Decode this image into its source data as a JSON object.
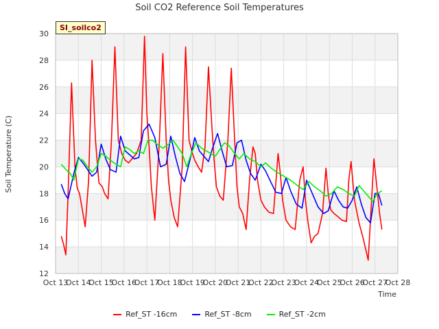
{
  "chart_data": {
    "type": "line",
    "title": "Soil CO2 Reference Soil Temperatures",
    "xlabel": "Time",
    "ylabel": "Soil Temperature (C)",
    "badge": "SI_soilco2",
    "ylim": [
      12,
      30
    ],
    "yticks": [
      12,
      14,
      16,
      18,
      20,
      22,
      24,
      26,
      28,
      30
    ],
    "xlim": [
      13,
      28
    ],
    "xticks": [
      13,
      14,
      15,
      16,
      17,
      18,
      19,
      20,
      21,
      22,
      23,
      24,
      25,
      26,
      27,
      28
    ],
    "xticklabels": [
      "Oct 13",
      "Oct 14",
      "Oct 15",
      "Oct 16",
      "Oct 17",
      "Oct 18",
      "Oct 19",
      "Oct 20",
      "Oct 21",
      "Oct 22",
      "Oct 23",
      "Oct 24",
      "Oct 25",
      "Oct 26",
      "Oct 27",
      "Oct 28"
    ],
    "series": [
      {
        "name": "Ref_ST -16cm",
        "color": "#ff0000",
        "x": [
          13.25,
          13.35,
          13.45,
          13.55,
          13.7,
          13.85,
          13.95,
          14.05,
          14.15,
          14.3,
          14.45,
          14.6,
          14.75,
          14.9,
          15.05,
          15.15,
          15.3,
          15.45,
          15.6,
          15.75,
          15.9,
          16.05,
          16.2,
          16.35,
          16.55,
          16.75,
          16.9,
          17.0,
          17.1,
          17.2,
          17.35,
          17.55,
          17.7,
          17.85,
          17.95,
          18.05,
          18.2,
          18.35,
          18.55,
          18.7,
          18.85,
          19.0,
          19.1,
          19.25,
          19.4,
          19.55,
          19.7,
          19.85,
          19.95,
          20.05,
          20.2,
          20.35,
          20.55,
          20.7,
          20.85,
          20.95,
          21.05,
          21.2,
          21.35,
          21.5,
          21.65,
          21.75,
          21.85,
          22.0,
          22.15,
          22.35,
          22.55,
          22.75,
          22.85,
          22.95,
          23.1,
          23.3,
          23.5,
          23.7,
          23.85,
          23.95,
          24.05,
          24.2,
          24.35,
          24.5,
          24.7,
          24.85,
          24.95,
          25.05,
          25.2,
          25.35,
          25.55,
          25.75,
          25.85,
          25.95,
          26.1,
          26.3,
          26.5,
          26.7,
          26.85,
          26.95,
          27.05,
          27.2,
          27.3
        ],
        "values": [
          14.8,
          14.2,
          13.4,
          18.0,
          26.3,
          20.0,
          18.4,
          18.0,
          17.0,
          15.5,
          19.0,
          28.0,
          22.0,
          18.8,
          18.5,
          18.0,
          17.6,
          22.0,
          29.0,
          22.0,
          21.0,
          20.5,
          20.3,
          20.6,
          21.0,
          22.0,
          29.8,
          24.0,
          21.5,
          18.5,
          16.0,
          22.0,
          28.5,
          22.0,
          19.0,
          17.5,
          16.2,
          15.5,
          20.0,
          29.0,
          22.0,
          21.0,
          20.5,
          20.0,
          19.6,
          21.5,
          27.5,
          23.0,
          20.5,
          18.5,
          17.8,
          17.5,
          22.0,
          27.4,
          22.0,
          18.5,
          17.0,
          16.5,
          15.3,
          19.0,
          21.5,
          21.0,
          19.0,
          17.5,
          17.0,
          16.6,
          16.5,
          21.0,
          19.5,
          17.5,
          16.0,
          15.5,
          15.3,
          19.0,
          20.0,
          17.5,
          16.0,
          14.3,
          14.8,
          15.0,
          16.5,
          19.9,
          18.0,
          16.8,
          16.5,
          16.3,
          16.0,
          15.9,
          19.0,
          20.4,
          17.5,
          15.8,
          14.5,
          13.0,
          17.5,
          20.6,
          19.0,
          16.5,
          15.3
        ]
      },
      {
        "name": "Ref_ST -8cm",
        "color": "#0000ff",
        "x": [
          13.25,
          13.4,
          13.55,
          13.8,
          14.0,
          14.2,
          14.4,
          14.6,
          14.8,
          15.0,
          15.2,
          15.4,
          15.65,
          15.85,
          16.05,
          16.25,
          16.45,
          16.65,
          16.85,
          17.1,
          17.35,
          17.6,
          17.85,
          18.05,
          18.25,
          18.45,
          18.65,
          18.9,
          19.1,
          19.3,
          19.5,
          19.7,
          19.9,
          20.1,
          20.3,
          20.5,
          20.75,
          20.95,
          21.15,
          21.35,
          21.55,
          21.75,
          22.0,
          22.2,
          22.45,
          22.65,
          22.9,
          23.1,
          23.3,
          23.55,
          23.8,
          24.0,
          24.25,
          24.5,
          24.75,
          24.95,
          25.2,
          25.4,
          25.6,
          25.8,
          26.0,
          26.2,
          26.4,
          26.6,
          26.8,
          27.0,
          27.15,
          27.3
        ],
        "values": [
          18.7,
          18.0,
          17.6,
          19.5,
          20.7,
          20.3,
          19.8,
          19.3,
          19.6,
          21.7,
          20.6,
          19.8,
          19.6,
          22.3,
          21.2,
          20.9,
          20.6,
          20.7,
          22.7,
          23.2,
          22.2,
          20.0,
          20.2,
          22.3,
          20.8,
          19.5,
          18.9,
          20.6,
          22.2,
          21.2,
          20.8,
          20.4,
          21.5,
          22.5,
          21.2,
          20.0,
          20.1,
          21.8,
          22.0,
          20.5,
          19.5,
          19.0,
          20.2,
          19.7,
          18.8,
          18.1,
          18.0,
          19.2,
          18.2,
          17.2,
          16.9,
          19.0,
          18.0,
          17.0,
          16.5,
          16.7,
          18.2,
          17.5,
          17.0,
          16.9,
          17.5,
          18.5,
          17.2,
          16.2,
          15.8,
          18.0,
          18.0,
          17.1
        ]
      },
      {
        "name": "Ref_ST -2cm",
        "color": "#00ee00",
        "x": [
          13.25,
          13.45,
          13.65,
          13.8,
          14.0,
          14.2,
          14.4,
          14.6,
          14.8,
          15.0,
          15.2,
          15.4,
          15.65,
          15.85,
          16.05,
          16.25,
          16.45,
          16.65,
          16.85,
          17.05,
          17.25,
          17.45,
          17.7,
          17.95,
          18.15,
          18.35,
          18.55,
          18.75,
          18.95,
          19.15,
          19.4,
          19.6,
          19.8,
          20.0,
          20.2,
          20.4,
          20.6,
          20.85,
          21.05,
          21.25,
          21.5,
          21.75,
          22.0,
          22.2,
          22.45,
          22.7,
          23.0,
          23.3,
          23.6,
          23.85,
          24.1,
          24.35,
          24.6,
          24.85,
          25.1,
          25.35,
          25.6,
          25.85,
          26.1,
          26.3,
          26.5,
          26.7,
          26.9,
          27.1,
          27.3
        ],
        "values": [
          20.2,
          19.8,
          19.5,
          19.0,
          20.6,
          20.5,
          20.0,
          19.6,
          20.0,
          21.0,
          20.8,
          20.5,
          20.2,
          20.0,
          21.5,
          21.3,
          21.0,
          21.2,
          21.0,
          22.0,
          22.0,
          21.7,
          21.4,
          21.7,
          22.0,
          21.5,
          21.0,
          20.0,
          21.0,
          21.8,
          21.4,
          21.2,
          21.0,
          20.8,
          21.3,
          21.8,
          21.6,
          21.0,
          20.6,
          21.0,
          20.6,
          20.4,
          20.0,
          20.3,
          19.9,
          19.6,
          19.3,
          19.0,
          18.6,
          18.3,
          18.9,
          18.5,
          18.2,
          17.8,
          18.0,
          18.5,
          18.3,
          18.0,
          17.8,
          18.6,
          18.2,
          17.8,
          17.4,
          18.0,
          18.2
        ]
      }
    ]
  }
}
